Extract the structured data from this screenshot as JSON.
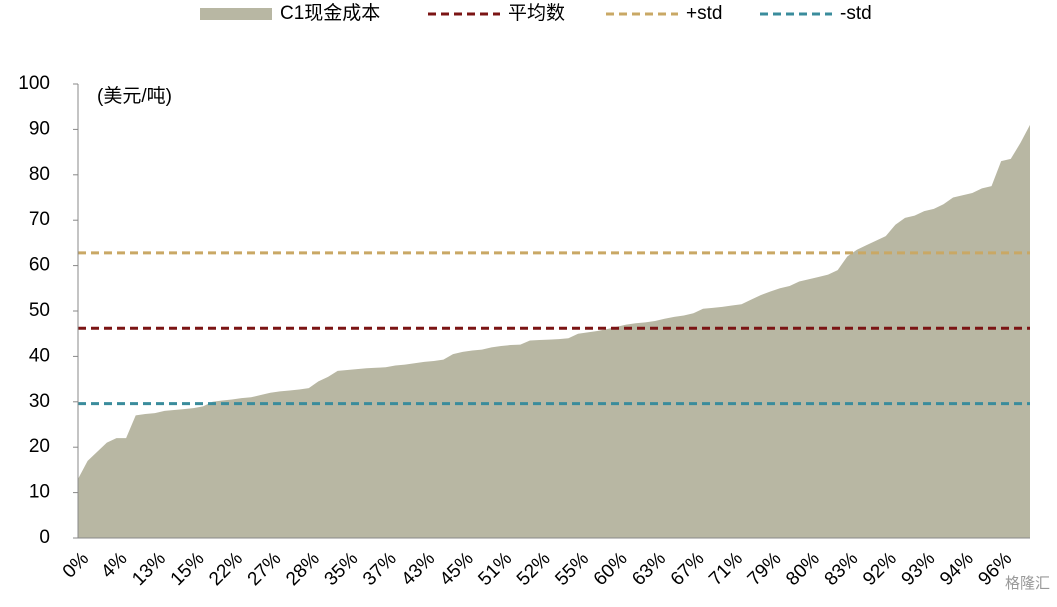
{
  "chart_data": {
    "type": "area",
    "unit_label": "(美元/吨)",
    "watermark": "格隆汇",
    "categories": [
      "0%",
      null,
      null,
      null,
      "4%",
      null,
      null,
      null,
      "13%",
      null,
      null,
      null,
      "15%",
      null,
      null,
      null,
      "22%",
      null,
      null,
      null,
      "27%",
      null,
      null,
      null,
      "28%",
      null,
      null,
      null,
      "35%",
      null,
      null,
      null,
      "37%",
      null,
      null,
      null,
      "43%",
      null,
      null,
      null,
      "45%",
      null,
      null,
      null,
      "51%",
      null,
      null,
      null,
      "52%",
      null,
      null,
      null,
      "55%",
      null,
      null,
      null,
      "60%",
      null,
      null,
      null,
      "63%",
      null,
      null,
      null,
      "67%",
      null,
      null,
      null,
      "71%",
      null,
      null,
      null,
      "79%",
      null,
      null,
      null,
      "80%",
      null,
      null,
      null,
      "83%",
      null,
      null,
      null,
      "92%",
      null,
      null,
      null,
      "93%",
      null,
      null,
      null,
      "94%",
      null,
      null,
      null,
      "96%",
      null,
      null,
      null
    ],
    "series": [
      {
        "name": "C1现金成本",
        "color": "#b8b7a3",
        "values": [
          13,
          17,
          19,
          21,
          22,
          22,
          27,
          27.3,
          27.5,
          28,
          28.2,
          28.4,
          28.6,
          29,
          30,
          30.3,
          30.5,
          30.8,
          31,
          31.5,
          32,
          32.3,
          32.5,
          32.7,
          33,
          34.5,
          35.5,
          36.8,
          37,
          37.2,
          37.4,
          37.5,
          37.6,
          38,
          38.2,
          38.5,
          38.8,
          39,
          39.3,
          40.5,
          41,
          41.3,
          41.5,
          42,
          42.3,
          42.5,
          42.6,
          43.5,
          43.6,
          43.7,
          43.8,
          44,
          45,
          45.3,
          45.6,
          46,
          46.5,
          47,
          47.3,
          47.5,
          47.8,
          48.3,
          48.7,
          49,
          49.5,
          50.5,
          50.7,
          50.9,
          51.2,
          51.5,
          52.5,
          53.5,
          54.3,
          55,
          55.5,
          56.5,
          57,
          57.5,
          58,
          59,
          62,
          63.5,
          64.5,
          65.5,
          66.5,
          69,
          70.5,
          71,
          72,
          72.5,
          73.5,
          75,
          75.5,
          76,
          77,
          77.5,
          83,
          83.5,
          87,
          91
        ]
      }
    ],
    "hlines": [
      {
        "name": "平均数",
        "color": "#7b1414",
        "value": 46.2
      },
      {
        "name": "+std",
        "color": "#c9a865",
        "value": 62.8
      },
      {
        "name": "-std",
        "color": "#3a8c9c",
        "value": 29.6
      }
    ],
    "ylim": [
      0,
      100
    ],
    "yticks": [
      0,
      10,
      20,
      30,
      40,
      50,
      60,
      70,
      80,
      90,
      100
    ]
  }
}
